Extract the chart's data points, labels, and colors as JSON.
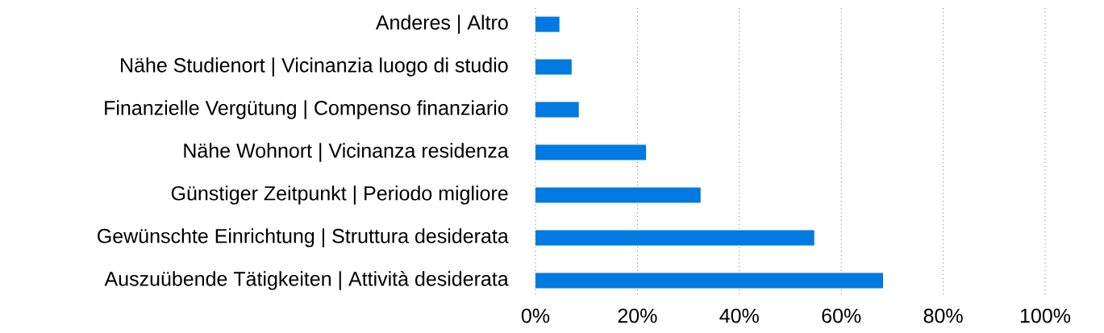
{
  "chart_data": {
    "type": "bar",
    "orientation": "horizontal",
    "categories": [
      "Anderes | Altro",
      "Nähe Studienort | Vicinanzia luogo di studio",
      "Finanzielle Vergütung | Compenso finanziario",
      "Nähe Wohnort | Vicinanza residenza",
      "Günstiger Zeitpunkt | Periodo migliore",
      "Gewünschte Einrichtung | Struttura desiderata",
      "Auszuübende Tätigkeiten | Attività desiderata"
    ],
    "values": [
      4.7,
      7.1,
      8.5,
      21.7,
      32.4,
      54.7,
      68.2
    ],
    "color": "#007ae1",
    "xlim": [
      0,
      100
    ],
    "xticks": [
      {
        "value": 0,
        "label": "0%"
      },
      {
        "value": 20,
        "label": "20%"
      },
      {
        "value": 40,
        "label": "40%"
      },
      {
        "value": 60,
        "label": "60%"
      },
      {
        "value": 80,
        "label": "80%"
      },
      {
        "value": 100,
        "label": "100%"
      }
    ],
    "grid": "x"
  }
}
